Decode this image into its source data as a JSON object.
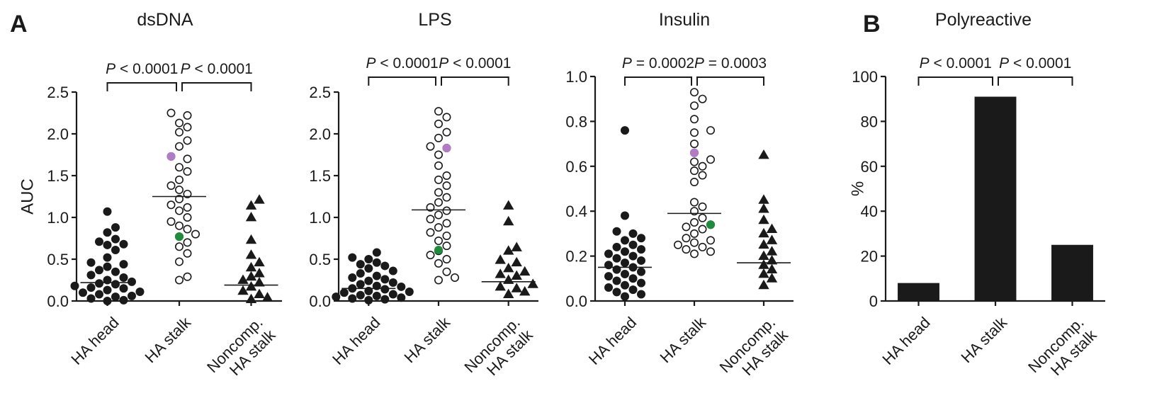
{
  "panel_labels": [
    "A",
    "B"
  ],
  "chart_data": [
    {
      "type": "scatter",
      "title": "dsDNA",
      "ylabel": "AUC",
      "xlabel": "",
      "ylim": [
        0,
        2.5
      ],
      "yticks": [
        0.0,
        0.5,
        1.0,
        1.5,
        2.0,
        2.5
      ],
      "ytick_labels": [
        "0.0",
        "0.5",
        "1.0",
        "1.5",
        "2.0",
        "2.5"
      ],
      "categories": [
        [
          "HA head"
        ],
        [
          "HA stalk"
        ],
        [
          "Noncomp.",
          "HA stalk"
        ]
      ],
      "marker_styles": [
        "filled-circle",
        "open-circle",
        "filled-triangle"
      ],
      "medians": [
        0.22,
        1.25,
        0.19
      ],
      "series": [
        {
          "values": [
            1.07,
            0.88,
            0.82,
            0.74,
            0.71,
            0.68,
            0.67,
            0.61,
            0.52,
            0.46,
            0.44,
            0.41,
            0.37,
            0.35,
            0.31,
            0.28,
            0.25,
            0.23,
            0.21,
            0.2,
            0.18,
            0.16,
            0.15,
            0.13,
            0.11,
            0.1,
            0.08,
            0.06,
            0.05,
            0.03,
            0.01,
            0.0
          ]
        },
        {
          "values": [
            2.25,
            2.22,
            2.13,
            2.08,
            2.02,
            1.92,
            1.85,
            1.73,
            1.7,
            1.6,
            1.55,
            1.45,
            1.38,
            1.33,
            1.28,
            1.22,
            1.15,
            1.12,
            1.08,
            1.0,
            0.95,
            0.9,
            0.86,
            0.8,
            0.77,
            0.7,
            0.65,
            0.57,
            0.47,
            0.29,
            0.25
          ]
        },
        {
          "values": [
            1.21,
            1.14,
            1.0,
            0.73,
            0.55,
            0.46,
            0.4,
            0.33,
            0.29,
            0.25,
            0.22,
            0.17,
            0.12,
            0.08,
            0.04,
            0.02
          ]
        }
      ],
      "highlights": [
        {
          "group": 1,
          "value": 1.73,
          "color": "#b07cc6"
        },
        {
          "group": 1,
          "value": 0.77,
          "color": "#1e8c3c"
        }
      ],
      "comparisons": [
        {
          "from": 0,
          "to": 1,
          "label": "P < 0.0001",
          "italic_prefix": "P",
          "text": " < 0.0001"
        },
        {
          "from": 1,
          "to": 2,
          "label": "P < 0.0001",
          "italic_prefix": "P",
          "text": " < 0.0001"
        }
      ]
    },
    {
      "type": "scatter",
      "title": "LPS",
      "ylabel": "",
      "xlabel": "",
      "ylim": [
        0,
        2.5
      ],
      "yticks": [
        0.0,
        0.5,
        1.0,
        1.5,
        2.0,
        2.5
      ],
      "ytick_labels": [
        "0.0",
        "0.5",
        "1.0",
        "1.5",
        "2.0",
        "2.5"
      ],
      "categories": [
        [
          "HA head"
        ],
        [
          "HA stalk"
        ],
        [
          "Noncomp.",
          "HA stalk"
        ]
      ],
      "marker_styles": [
        "filled-circle",
        "open-circle",
        "filled-triangle"
      ],
      "medians": [
        0.15,
        1.09,
        0.23
      ],
      "series": [
        {
          "values": [
            0.58,
            0.52,
            0.5,
            0.46,
            0.44,
            0.42,
            0.39,
            0.36,
            0.33,
            0.3,
            0.28,
            0.26,
            0.24,
            0.22,
            0.2,
            0.18,
            0.17,
            0.15,
            0.14,
            0.12,
            0.11,
            0.1,
            0.08,
            0.07,
            0.06,
            0.05,
            0.04,
            0.03,
            0.02,
            0.01
          ]
        },
        {
          "values": [
            2.27,
            2.2,
            2.12,
            2.02,
            1.95,
            1.85,
            1.83,
            1.75,
            1.62,
            1.5,
            1.45,
            1.38,
            1.3,
            1.24,
            1.18,
            1.12,
            1.08,
            1.03,
            0.98,
            0.93,
            0.88,
            0.82,
            0.78,
            0.72,
            0.66,
            0.6,
            0.55,
            0.5,
            0.45,
            0.35,
            0.28,
            0.25
          ]
        },
        {
          "values": [
            1.14,
            0.95,
            0.64,
            0.6,
            0.49,
            0.46,
            0.39,
            0.35,
            0.32,
            0.3,
            0.25,
            0.2,
            0.17,
            0.15,
            0.11,
            0.08
          ]
        }
      ],
      "highlights": [
        {
          "group": 1,
          "value": 1.83,
          "color": "#b07cc6"
        },
        {
          "group": 1,
          "value": 0.61,
          "color": "#1e8c3c"
        }
      ],
      "comparisons": [
        {
          "from": 0,
          "to": 1,
          "label": "P < 0.0001",
          "italic_prefix": "P",
          "text": " < 0.0001"
        },
        {
          "from": 1,
          "to": 2,
          "label": "P < 0.0001",
          "italic_prefix": "P",
          "text": " < 0.0001"
        }
      ]
    },
    {
      "type": "scatter",
      "title": "Insulin",
      "ylabel": "",
      "xlabel": "",
      "ylim": [
        0,
        1.0
      ],
      "yticks": [
        0.0,
        0.2,
        0.4,
        0.6,
        0.8,
        1.0
      ],
      "ytick_labels": [
        "0.0",
        "0.2",
        "0.4",
        "0.6",
        "0.8",
        "1.0"
      ],
      "categories": [
        [
          "HA head"
        ],
        [
          "HA stalk"
        ],
        [
          "Noncomp.",
          "HA stalk"
        ]
      ],
      "marker_styles": [
        "filled-circle",
        "open-circle",
        "filled-triangle"
      ],
      "medians": [
        0.15,
        0.39,
        0.17
      ],
      "series": [
        {
          "values": [
            0.76,
            0.38,
            0.31,
            0.3,
            0.28,
            0.27,
            0.25,
            0.24,
            0.23,
            0.22,
            0.21,
            0.2,
            0.19,
            0.18,
            0.17,
            0.16,
            0.15,
            0.14,
            0.13,
            0.12,
            0.11,
            0.1,
            0.09,
            0.08,
            0.07,
            0.06,
            0.05,
            0.04,
            0.03,
            0.02
          ]
        },
        {
          "values": [
            0.93,
            0.9,
            0.87,
            0.81,
            0.76,
            0.75,
            0.7,
            0.66,
            0.63,
            0.62,
            0.6,
            0.58,
            0.56,
            0.53,
            0.44,
            0.42,
            0.4,
            0.37,
            0.35,
            0.34,
            0.33,
            0.32,
            0.3,
            0.28,
            0.27,
            0.26,
            0.25,
            0.24,
            0.23,
            0.22,
            0.21
          ]
        },
        {
          "values": [
            0.65,
            0.45,
            0.41,
            0.36,
            0.32,
            0.3,
            0.27,
            0.25,
            0.22,
            0.2,
            0.18,
            0.16,
            0.14,
            0.12,
            0.1,
            0.07
          ]
        }
      ],
      "highlights": [
        {
          "group": 1,
          "value": 0.66,
          "color": "#b07cc6"
        },
        {
          "group": 1,
          "value": 0.34,
          "color": "#1e8c3c"
        }
      ],
      "comparisons": [
        {
          "from": 0,
          "to": 1,
          "label": "P = 0.0002",
          "italic_prefix": "P",
          "text": " = 0.0002"
        },
        {
          "from": 1,
          "to": 2,
          "label": "P = 0.0003",
          "italic_prefix": "P",
          "text": " = 0.0003"
        }
      ]
    },
    {
      "type": "bar",
      "title": "Polyreactive",
      "ylabel": "%",
      "xlabel": "",
      "ylim": [
        0,
        100
      ],
      "yticks": [
        0,
        20,
        40,
        60,
        80,
        100
      ],
      "ytick_labels": [
        "0",
        "20",
        "40",
        "60",
        "80",
        "100"
      ],
      "categories": [
        [
          "HA head"
        ],
        [
          "HA stalk"
        ],
        [
          "Noncomp.",
          "HA stalk"
        ]
      ],
      "values": [
        8,
        91,
        25
      ],
      "comparisons": [
        {
          "from": 0,
          "to": 1,
          "label": "P < 0.0001",
          "italic_prefix": "P",
          "text": " < 0.0001"
        },
        {
          "from": 1,
          "to": 2,
          "label": "P < 0.0001",
          "italic_prefix": "P",
          "text": " < 0.0001"
        }
      ]
    }
  ]
}
